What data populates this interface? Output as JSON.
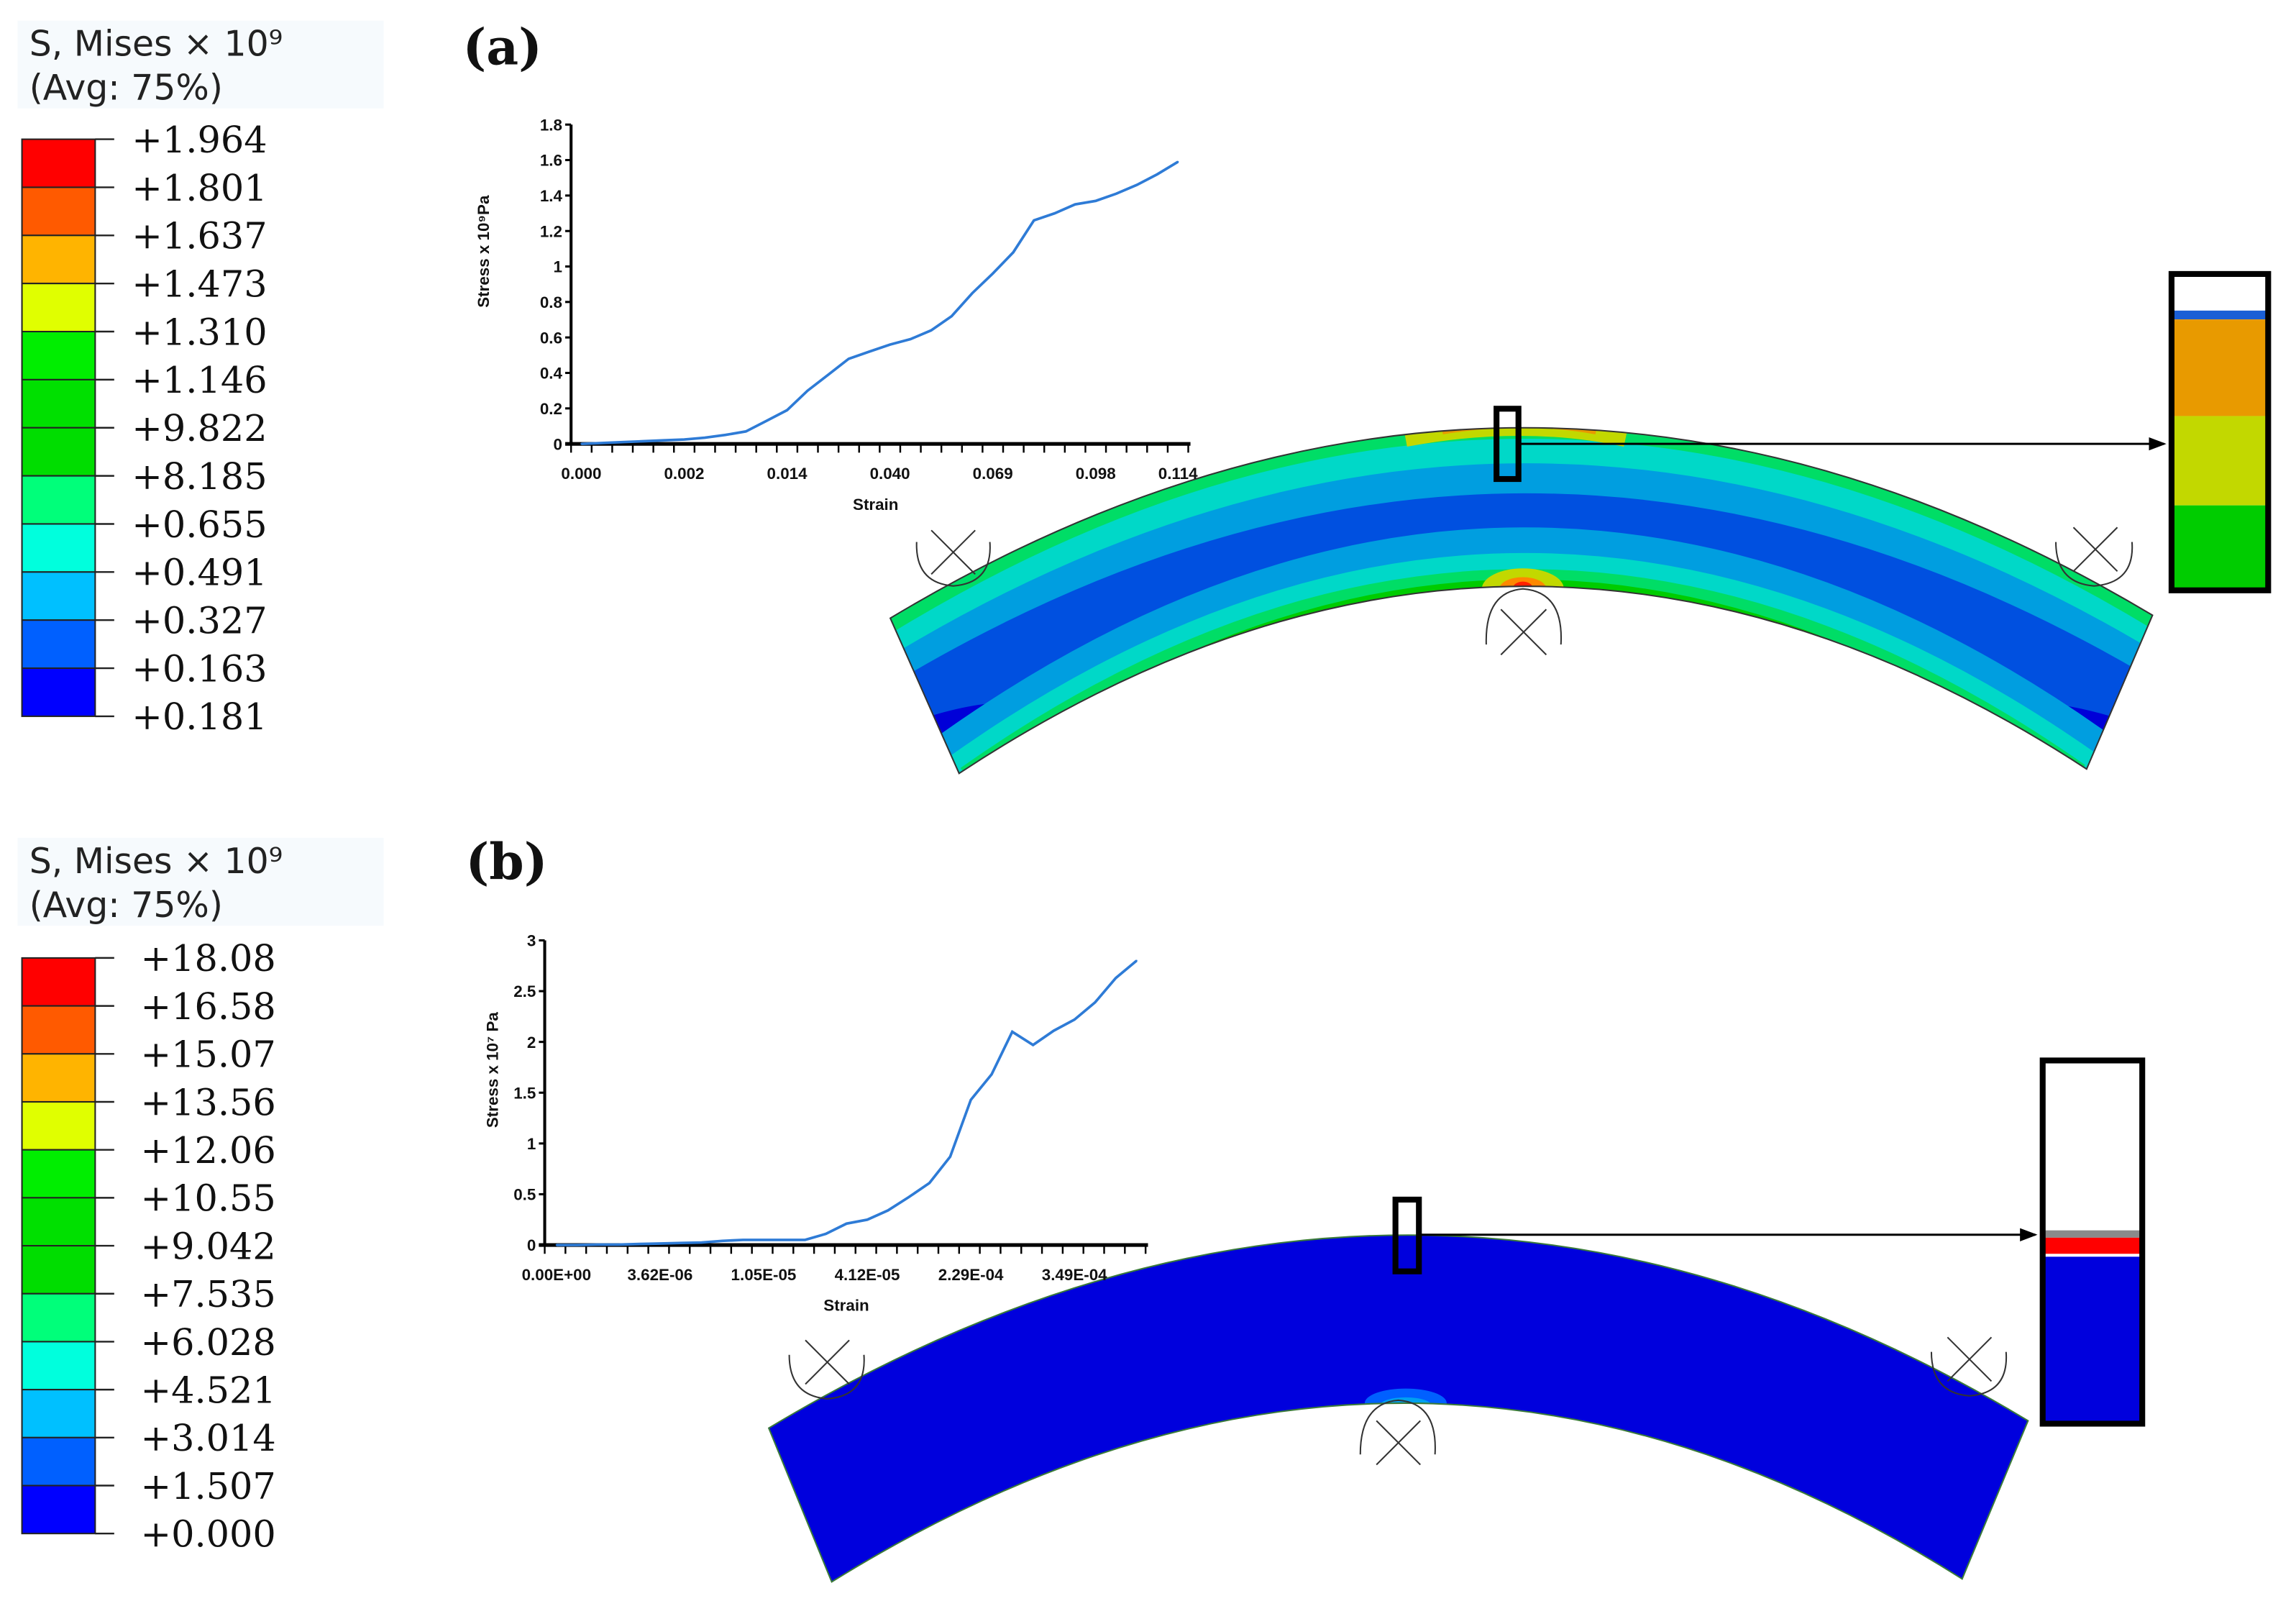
{
  "panels": [
    {
      "label": "(a)",
      "legend": {
        "title_line1": "S, Mises × 10⁹",
        "title_line2": "(Avg: 75%)",
        "values": [
          "+1.964",
          "+1.801",
          "+1.637",
          "+1.473",
          "+1.310",
          "+1.146",
          "+9.822",
          "+8.185",
          "+0.655",
          "+0.491",
          "+0.327",
          "+0.163",
          "+0.181"
        ],
        "colors": [
          "#ff0000",
          "#ff5a00",
          "#ffb400",
          "#e0ff00",
          "#00ee00",
          "#00e000",
          "#00dd00",
          "#00ff7a",
          "#00ffdd",
          "#00c0ff",
          "#0060ff",
          "#0000ff"
        ]
      },
      "inset_colors": [
        "#ffffff",
        "#1a5fd6",
        "#e89a00",
        "#c2d800",
        "#00cc00"
      ]
    },
    {
      "label": "(b)",
      "legend": {
        "title_line1": "S, Mises × 10⁹",
        "title_line2": "(Avg: 75%)",
        "values": [
          "+18.08",
          "+16.58",
          "+15.07",
          "+13.56",
          "+12.06",
          "+10.55",
          "+9.042",
          "+7.535",
          "+6.028",
          "+4.521",
          "+3.014",
          "+1.507",
          "+0.000"
        ],
        "colors": [
          "#ff0000",
          "#ff5a00",
          "#ffb400",
          "#e0ff00",
          "#00ee00",
          "#00e000",
          "#00dd00",
          "#00ff7a",
          "#00ffdd",
          "#00c0ff",
          "#0060ff",
          "#0000ff"
        ]
      },
      "inset_colors": [
        "#ffffff",
        "#8a8a8a",
        "#ff0000",
        "#0000dd"
      ]
    }
  ],
  "chart_data": [
    {
      "type": "line",
      "title": "",
      "xlabel": "Strain",
      "ylabel": "Stress x 10⁹Pa",
      "ylim": [
        0,
        1.8
      ],
      "y_ticks": [
        "0",
        "0.2",
        "0.4",
        "0.6",
        "0.8",
        "1",
        "1.2",
        "1.4",
        "1.6",
        "1.8"
      ],
      "x_tick_labels": [
        {
          "index": 0,
          "label": "0.000"
        },
        {
          "index": 5,
          "label": "0.002"
        },
        {
          "index": 10,
          "label": "0.014"
        },
        {
          "index": 15,
          "label": "0.040"
        },
        {
          "index": 20,
          "label": "0.069"
        },
        {
          "index": 25,
          "label": "0.098"
        },
        {
          "index": 29,
          "label": "0.114"
        }
      ],
      "grid": false,
      "line_color": "#2e7bd6",
      "values": [
        0,
        0.005,
        0.01,
        0.015,
        0.02,
        0.025,
        0.035,
        0.05,
        0.07,
        0.13,
        0.19,
        0.3,
        0.39,
        0.48,
        0.52,
        0.56,
        0.59,
        0.64,
        0.72,
        0.85,
        0.96,
        1.08,
        1.26,
        1.3,
        1.35,
        1.37,
        1.41,
        1.46,
        1.52,
        1.59
      ]
    },
    {
      "type": "line",
      "title": "",
      "xlabel": "Strain",
      "ylabel": "Stress  x 10⁷ Pa",
      "ylim": [
        0,
        3
      ],
      "y_ticks": [
        "0",
        "0.5",
        "1",
        "1.5",
        "2",
        "2.5",
        "3"
      ],
      "x_tick_labels": [
        {
          "index": 0,
          "label": "0.00E+00"
        },
        {
          "index": 5,
          "label": "3.62E-06"
        },
        {
          "index": 10,
          "label": "1.05E-05"
        },
        {
          "index": 15,
          "label": "4.12E-05"
        },
        {
          "index": 20,
          "label": "2.29E-04"
        },
        {
          "index": 25,
          "label": "3.49E-04"
        }
      ],
      "grid": false,
      "line_color": "#2e7bd6",
      "values": [
        0,
        0,
        0.005,
        0.005,
        0.01,
        0.015,
        0.02,
        0.025,
        0.04,
        0.05,
        0.05,
        0.05,
        0.05,
        0.11,
        0.21,
        0.25,
        0.34,
        0.47,
        0.61,
        0.87,
        1.43,
        1.68,
        2.1,
        1.97,
        2.11,
        2.22,
        2.39,
        2.63,
        2.8
      ]
    }
  ]
}
